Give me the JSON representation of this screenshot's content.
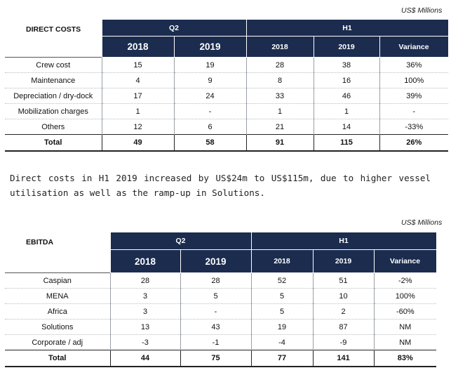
{
  "units": "US$ Millions",
  "direct_costs": {
    "title": "DIRECT COSTS",
    "groups": [
      "Q2",
      "H1"
    ],
    "columns": [
      "2018",
      "2019",
      "2018",
      "2019",
      "Variance"
    ],
    "rows": [
      {
        "label": "Crew cost",
        "values": [
          "15",
          "19",
          "28",
          "38",
          "36%"
        ]
      },
      {
        "label": "Maintenance",
        "values": [
          "4",
          "9",
          "8",
          "16",
          "100%"
        ]
      },
      {
        "label": "Depreciation / dry-dock",
        "values": [
          "17",
          "24",
          "33",
          "46",
          "39%"
        ]
      },
      {
        "label": "Mobilization charges",
        "values": [
          "1",
          "-",
          "1",
          "1",
          "-"
        ]
      },
      {
        "label": "Others",
        "values": [
          "12",
          "6",
          "21",
          "14",
          "-33%"
        ]
      }
    ],
    "total": {
      "label": "Total",
      "values": [
        "49",
        "58",
        "91",
        "115",
        "26%"
      ]
    }
  },
  "paragraph": "Direct costs in H1 2019 increased by US$24m to US$115m, due to higher vessel utilisation as well as the ramp-up in Solutions.",
  "ebitda": {
    "title": "EBITDA",
    "groups": [
      "Q2",
      "H1"
    ],
    "columns": [
      "2018",
      "2019",
      "2018",
      "2019",
      "Variance"
    ],
    "rows": [
      {
        "label": "Caspian",
        "values": [
          "28",
          "28",
          "52",
          "51",
          "-2%"
        ]
      },
      {
        "label": "MENA",
        "values": [
          "3",
          "5",
          "5",
          "10",
          "100%"
        ]
      },
      {
        "label": "Africa",
        "values": [
          "3",
          "-",
          "5",
          "2",
          "-60%"
        ]
      },
      {
        "label": "Solutions",
        "values": [
          "13",
          "43",
          "19",
          "87",
          "NM"
        ]
      },
      {
        "label": "Corporate / adj",
        "values": [
          "-3",
          "-1",
          "-4",
          "-9",
          "NM"
        ]
      }
    ],
    "total": {
      "label": "Total",
      "values": [
        "44",
        "75",
        "77",
        "141",
        "83%"
      ]
    }
  }
}
